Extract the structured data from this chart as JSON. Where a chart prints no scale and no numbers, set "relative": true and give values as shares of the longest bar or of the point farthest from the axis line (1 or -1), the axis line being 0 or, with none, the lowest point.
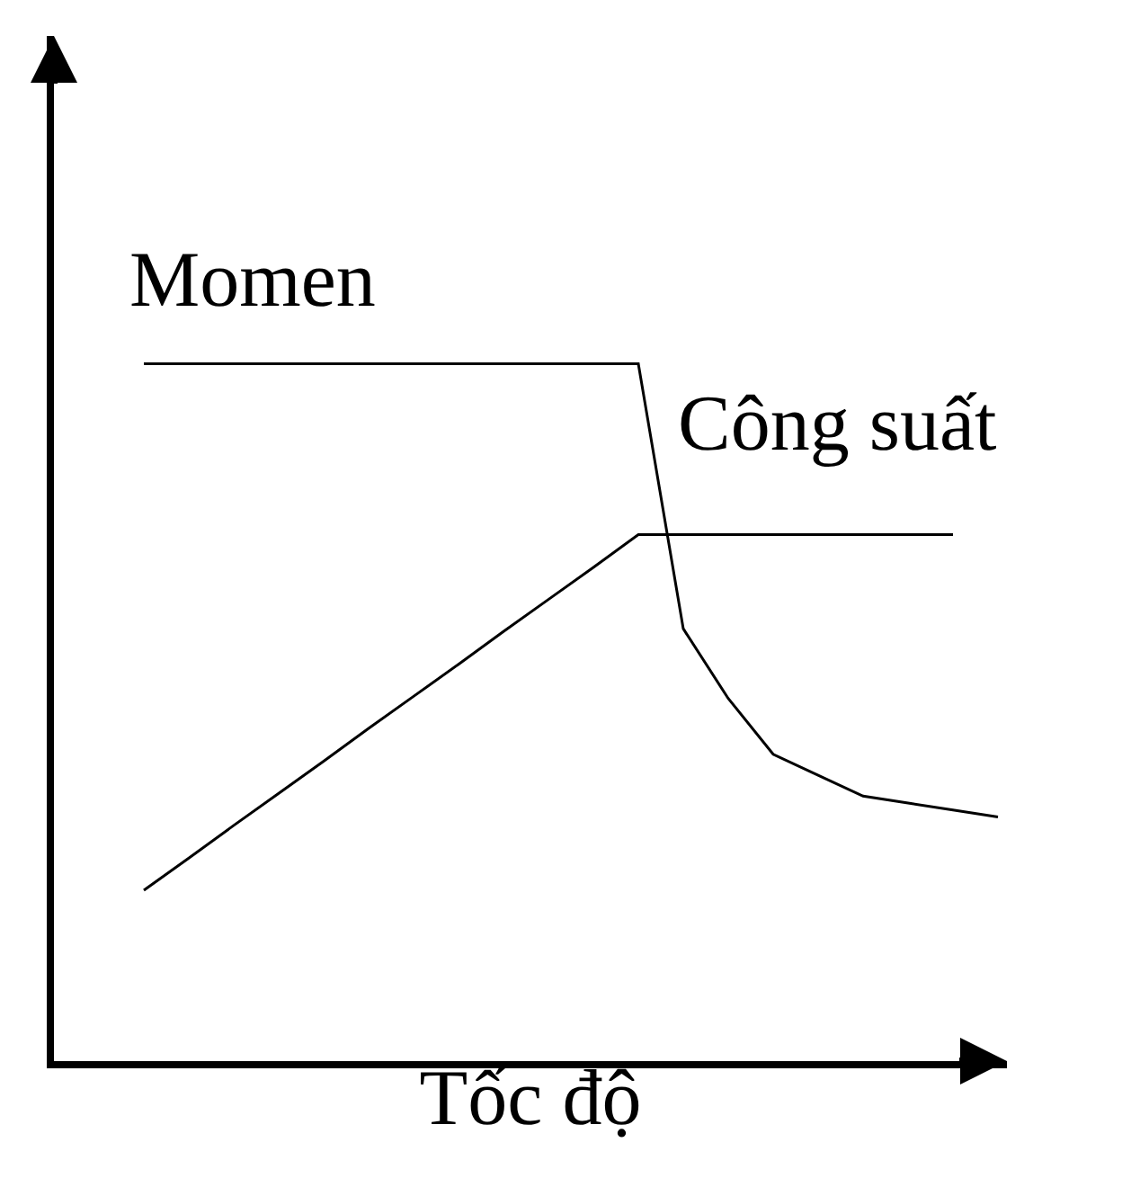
{
  "chart_data": {
    "type": "line",
    "relative": true,
    "xlabel": "Tốc độ",
    "categories": [
      null,
      null,
      null,
      null,
      null,
      null,
      null,
      null,
      null,
      null,
      null,
      null,
      null,
      null,
      null,
      null,
      null,
      null,
      null,
      null
    ],
    "legend": false,
    "marker": "none",
    "line_style": "solid",
    "series": [
      {
        "name": "Momen",
        "color": "#000000",
        "values": [
          1,
          1,
          1,
          1,
          1,
          1,
          1,
          1,
          1,
          1,
          1,
          1,
          0.62,
          0.52,
          0.44,
          0.41,
          0.38,
          0.37,
          0.36,
          0.35
        ]
      },
      {
        "name": "Công suất",
        "color": "#000000",
        "values": [
          0.245,
          0.291,
          0.338,
          0.384,
          0.43,
          0.477,
          0.523,
          0.569,
          0.616,
          0.662,
          0.708,
          0.755,
          0.755,
          0.755,
          0.755,
          0.755,
          0.755,
          0.755,
          0.755,
          null
        ]
      }
    ]
  }
}
